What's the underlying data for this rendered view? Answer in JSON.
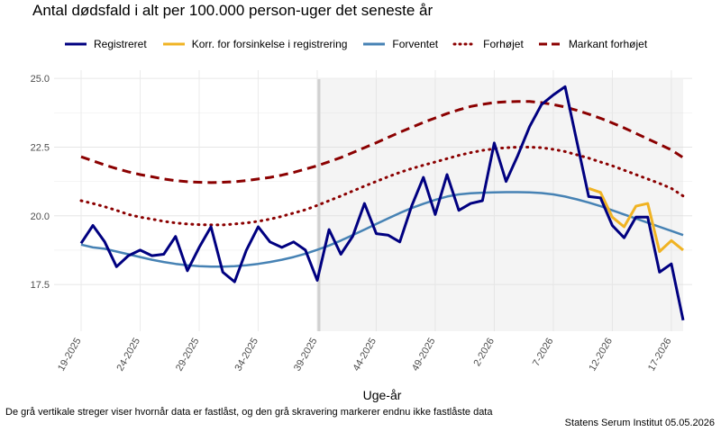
{
  "title": "Antal dødsfald i alt per 100.000 person-uger det seneste år",
  "caption": {
    "note": "De grå vertikale streger viser hvornår data er fastlåst, og den grå skravering markerer endnu ikke fastlåste data",
    "source": "Statens Serum Institut  05.05.2026"
  },
  "chart_data": {
    "type": "line",
    "title": "Antal dødsfald i alt per 100.000 person-uger det seneste år",
    "xlabel": "Uge-år",
    "ylabel": "",
    "ylim": [
      15.8,
      25.3
    ],
    "y_ticks": [
      "17.5",
      "20.0",
      "22.5",
      "25.0"
    ],
    "x_tick_labels": [
      "19-2025",
      "24-2025",
      "29-2025",
      "34-2025",
      "39-2025",
      "44-2025",
      "49-2025",
      "2-2026",
      "7-2026",
      "12-2026",
      "17-2026"
    ],
    "x": [
      "19-2025",
      "20-2025",
      "21-2025",
      "22-2025",
      "23-2025",
      "24-2025",
      "25-2025",
      "26-2025",
      "27-2025",
      "28-2025",
      "29-2025",
      "30-2025",
      "31-2025",
      "32-2025",
      "33-2025",
      "34-2025",
      "35-2025",
      "36-2025",
      "37-2025",
      "38-2025",
      "39-2025",
      "40-2025",
      "41-2025",
      "42-2025",
      "43-2025",
      "44-2025",
      "45-2025",
      "46-2025",
      "47-2025",
      "48-2025",
      "49-2025",
      "50-2025",
      "51-2025",
      "52-2025",
      "1-2026",
      "2-2026",
      "3-2026",
      "4-2026",
      "5-2026",
      "6-2026",
      "7-2026",
      "8-2026",
      "9-2026",
      "10-2026",
      "11-2026",
      "12-2026",
      "13-2026",
      "14-2026",
      "15-2026",
      "16-2026",
      "17-2026",
      "18-2026"
    ],
    "unfrozen_start": "39-2025",
    "grid": true,
    "legend_position": "top",
    "series": [
      {
        "name": "Registreret",
        "color": "#000080",
        "style": "solid",
        "values": [
          19.0,
          19.65,
          19.05,
          18.15,
          18.55,
          18.75,
          18.55,
          18.6,
          19.25,
          18.0,
          18.85,
          19.6,
          17.95,
          17.6,
          18.75,
          19.6,
          19.05,
          18.85,
          19.05,
          18.75,
          17.65,
          19.5,
          18.6,
          19.25,
          20.45,
          19.35,
          19.3,
          19.05,
          20.35,
          21.4,
          20.05,
          21.5,
          20.2,
          20.45,
          20.55,
          22.65,
          21.25,
          22.2,
          23.25,
          24.05,
          24.4,
          24.7,
          22.7,
          20.7,
          20.65,
          19.65,
          19.2,
          19.95,
          19.95,
          17.95,
          18.25,
          16.2
        ]
      },
      {
        "name": "Korr. for forsinkelse i registrering",
        "color": "#F0B323",
        "style": "solid",
        "values": [
          null,
          null,
          null,
          null,
          null,
          null,
          null,
          null,
          null,
          null,
          null,
          null,
          null,
          null,
          null,
          null,
          null,
          null,
          null,
          null,
          null,
          null,
          null,
          null,
          null,
          null,
          null,
          null,
          null,
          null,
          null,
          null,
          null,
          null,
          null,
          null,
          null,
          null,
          null,
          null,
          null,
          null,
          null,
          21.0,
          20.85,
          19.95,
          19.6,
          20.35,
          20.45,
          18.7,
          19.1,
          18.75
        ]
      },
      {
        "name": "Forventet",
        "color": "#4682B4",
        "style": "solid",
        "values": [
          18.95,
          18.85,
          18.8,
          18.7,
          18.6,
          18.5,
          18.4,
          18.32,
          18.25,
          18.2,
          18.17,
          18.15,
          18.15,
          18.17,
          18.2,
          18.25,
          18.32,
          18.4,
          18.5,
          18.62,
          18.76,
          18.92,
          19.1,
          19.3,
          19.5,
          19.7,
          19.9,
          20.1,
          20.28,
          20.44,
          20.58,
          20.7,
          20.78,
          20.82,
          20.84,
          20.85,
          20.86,
          20.86,
          20.85,
          20.83,
          20.78,
          20.7,
          20.6,
          20.48,
          20.35,
          20.2,
          20.05,
          19.9,
          19.75,
          19.6,
          19.45,
          19.3
        ]
      },
      {
        "name": "Forhøjet",
        "color": "#8B0000",
        "style": "dotted",
        "values": [
          20.55,
          20.45,
          20.33,
          20.2,
          20.05,
          19.95,
          19.88,
          19.8,
          19.74,
          19.7,
          19.68,
          19.67,
          19.67,
          19.7,
          19.74,
          19.8,
          19.88,
          19.98,
          20.1,
          20.22,
          20.38,
          20.55,
          20.72,
          20.9,
          21.08,
          21.25,
          21.42,
          21.58,
          21.72,
          21.84,
          21.96,
          22.08,
          22.2,
          22.3,
          22.38,
          22.44,
          22.48,
          22.5,
          22.5,
          22.48,
          22.42,
          22.34,
          22.22,
          22.1,
          21.96,
          21.82,
          21.66,
          21.5,
          21.34,
          21.18,
          21.0,
          20.72
        ]
      },
      {
        "name": "Markant forhøjet",
        "color": "#8B0000",
        "style": "dashed",
        "values": [
          22.15,
          22.0,
          21.85,
          21.72,
          21.6,
          21.5,
          21.42,
          21.34,
          21.28,
          21.24,
          21.22,
          21.21,
          21.22,
          21.24,
          21.28,
          21.34,
          21.4,
          21.48,
          21.58,
          21.7,
          21.82,
          21.97,
          22.12,
          22.3,
          22.48,
          22.66,
          22.85,
          23.04,
          23.22,
          23.4,
          23.56,
          23.72,
          23.86,
          23.98,
          24.06,
          24.12,
          24.15,
          24.16,
          24.16,
          24.12,
          24.05,
          23.96,
          23.84,
          23.7,
          23.55,
          23.38,
          23.2,
          23.0,
          22.8,
          22.6,
          22.4,
          22.12
        ]
      }
    ]
  }
}
